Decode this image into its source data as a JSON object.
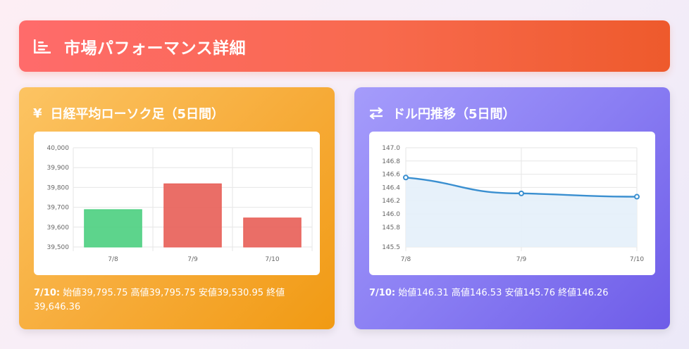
{
  "header": {
    "title": "市場パフォーマンス詳細",
    "icon": "chart-list-icon"
  },
  "nikkei": {
    "icon": "yen-icon",
    "icon_glyph": "¥",
    "title": "日経平均ローソク足（5日間）",
    "summary_date": "7/10:",
    "summary_text": "始値39,795.75 高値39,795.75 安値39,530.95 終値39,646.36"
  },
  "usdjpy": {
    "icon": "exchange-arrows-icon",
    "title": "ドル円推移（5日間）",
    "summary_date": "7/10:",
    "summary_text": "始値146.31 高値146.53 安値145.76 終値146.26"
  },
  "chart_data": [
    {
      "type": "bar",
      "categories": [
        "7/8",
        "7/9",
        "7/10"
      ],
      "values": [
        39688,
        39818,
        39646
      ],
      "bar_colors": [
        "#4fd082",
        "#e8625a",
        "#e8625a"
      ],
      "ylim": [
        39500,
        40000
      ],
      "yticks": [
        "39,500",
        "39,600",
        "39,700",
        "39,800",
        "39,900",
        "40,000"
      ],
      "grid": true
    },
    {
      "type": "area",
      "categories": [
        "7/8",
        "7/9",
        "7/10"
      ],
      "values": [
        146.55,
        146.31,
        146.26
      ],
      "line_color": "#3a8fd0",
      "fill_color": "#e4f0f9",
      "ylim": [
        145.5,
        147.0
      ],
      "yticks": [
        "145.5",
        "145.8",
        "146.0",
        "146.2",
        "146.4",
        "146.6",
        "146.8",
        "147.0"
      ],
      "grid": true
    }
  ]
}
